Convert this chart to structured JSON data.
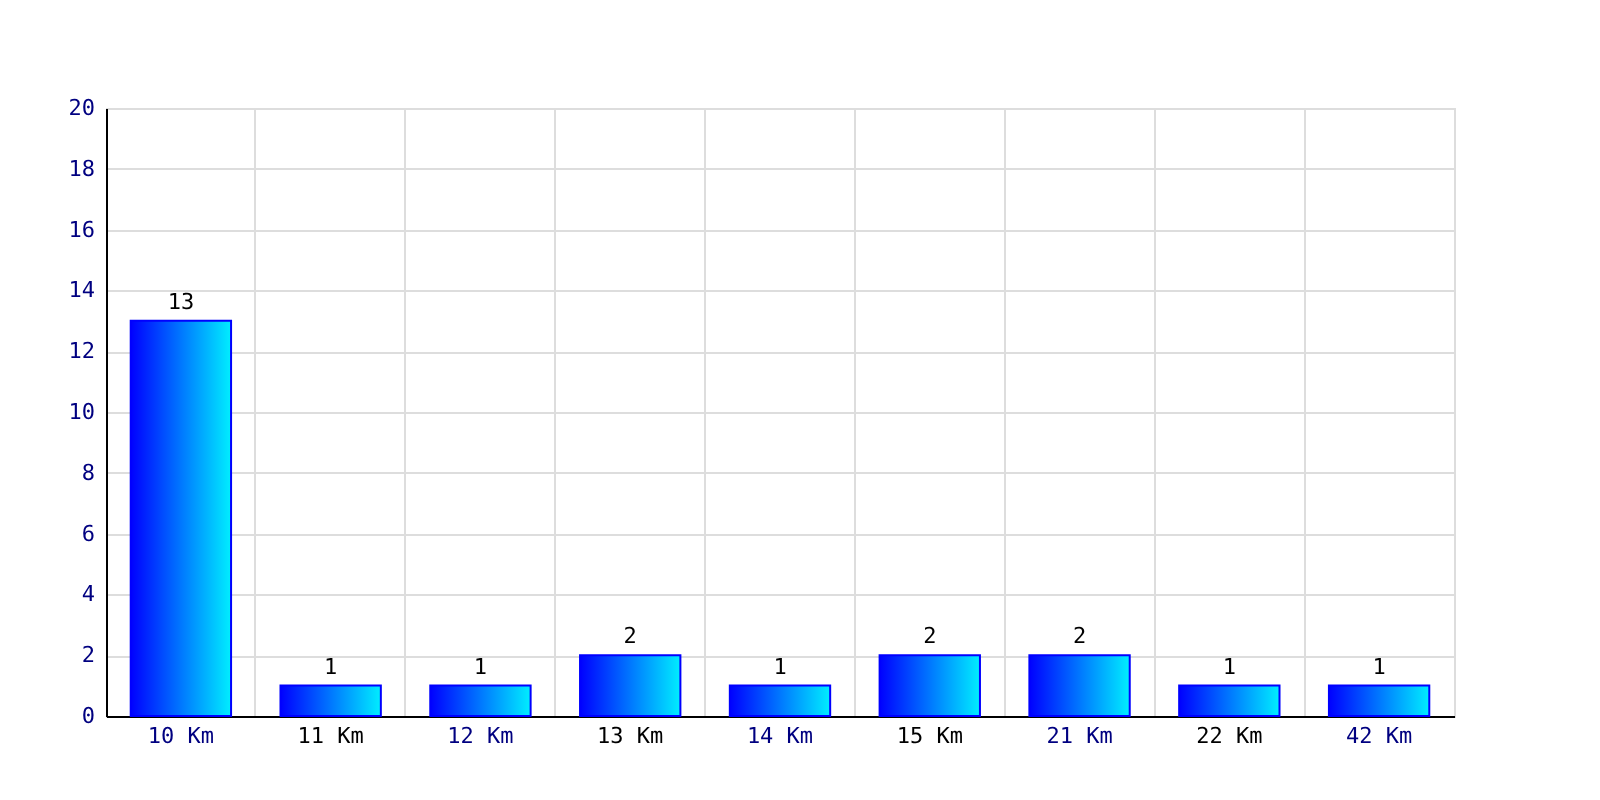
{
  "chart_data": {
    "type": "bar",
    "categories": [
      "10 Km",
      "11 Km",
      "12 Km",
      "13 Km",
      "14 Km",
      "15 Km",
      "21 Km",
      "22 Km",
      "42 Km"
    ],
    "values": [
      13,
      1,
      1,
      2,
      1,
      2,
      2,
      1,
      1
    ],
    "color": "#0000ff",
    "ylim": [
      0,
      20
    ],
    "yticks": [
      0,
      2,
      4,
      6,
      8,
      10,
      12,
      14,
      16,
      18,
      20
    ],
    "grid": true,
    "data_labels": true
  }
}
